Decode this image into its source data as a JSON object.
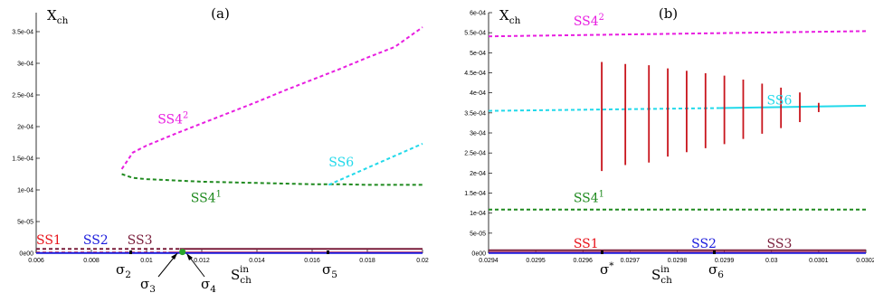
{
  "chart_data": [
    {
      "type": "line",
      "panel_label": "(a)",
      "ylabel": "X",
      "ylabel_sub": "ch",
      "xlabel": "S",
      "xlabel_sub": "ch",
      "xlabel_sup": "in",
      "xlim": [
        0.006,
        0.02
      ],
      "ylim": [
        0,
        0.00038
      ],
      "xticks": [
        {
          "v": 0.006,
          "label": "0.006"
        },
        {
          "v": 0.008,
          "label": "0.008"
        },
        {
          "v": 0.01,
          "label": "0.01"
        },
        {
          "v": 0.012,
          "label": "0.012"
        },
        {
          "v": 0.014,
          "label": "0.014"
        },
        {
          "v": 0.016,
          "label": "0.016"
        },
        {
          "v": 0.018,
          "label": "0.018"
        },
        {
          "v": 0.02,
          "label": "0.02"
        }
      ],
      "yticks": [
        {
          "v": 0,
          "label": "0e00"
        },
        {
          "v": 5e-05,
          "label": "5e-05"
        },
        {
          "v": 0.0001,
          "label": "1e-04"
        },
        {
          "v": 0.00015,
          "label": "1.5e-04"
        },
        {
          "v": 0.0002,
          "label": "2e-04"
        },
        {
          "v": 0.00025,
          "label": "2.5e-04"
        },
        {
          "v": 0.0003,
          "label": "3e-04"
        },
        {
          "v": 0.00035,
          "label": "3.5e-04"
        }
      ],
      "series": [
        {
          "name": "SS1",
          "color": "#e8141c",
          "style": "solid",
          "x": [
            0.0108,
            0.02
          ],
          "y": [
            1.2e-06,
            1.2e-06
          ]
        },
        {
          "name": "SS1",
          "color": "#e8141c",
          "style": "dashed",
          "x": [
            0.006,
            0.0108
          ],
          "y": [
            1.2e-06,
            1.2e-06
          ]
        },
        {
          "name": "SS2",
          "color": "#1a1adc",
          "style": "solid",
          "x": [
            0.006,
            0.02
          ],
          "y": [
            3e-07,
            3e-07
          ]
        },
        {
          "name": "SS3",
          "color": "#7a1f3c",
          "style": "solid",
          "x": [
            0.0112,
            0.02
          ],
          "y": [
            6.8e-06,
            6.8e-06
          ]
        },
        {
          "name": "SS3",
          "color": "#7a1f3c",
          "style": "dashed",
          "x": [
            0.006,
            0.0112
          ],
          "y": [
            6.8e-06,
            6.8e-06
          ]
        },
        {
          "name": "SS4²",
          "color": "#e81ee0",
          "style": "dashed",
          "x": [
            0.0091,
            0.0095,
            0.01,
            0.011,
            0.012,
            0.013,
            0.014,
            0.015,
            0.016,
            0.017,
            0.018,
            0.019,
            0.02
          ],
          "y": [
            0.000133,
            0.000159,
            0.00017,
            0.000188,
            0.000205,
            0.000222,
            0.000239,
            0.000257,
            0.000274,
            0.000291,
            0.000309,
            0.000326,
            0.000357
          ]
        },
        {
          "name": "SS4¹",
          "color": "#1f8a1f",
          "style": "dashed",
          "x": [
            0.0091,
            0.0095,
            0.01,
            0.011,
            0.012,
            0.013,
            0.014,
            0.015,
            0.016,
            0.017,
            0.018,
            0.019,
            0.02
          ],
          "y": [
            0.000125,
            0.000119,
            0.000117,
            0.000115,
            0.000113,
            0.000112,
            0.000111,
            0.00011,
            0.000109,
            0.000109,
            0.000108,
            0.000108,
            0.000108
          ]
        },
        {
          "name": "SS6",
          "color": "#22d9ea",
          "style": "dashed",
          "x": [
            0.0166,
            0.02
          ],
          "y": [
            0.000108,
            0.000173
          ]
        }
      ],
      "markers": [
        {
          "x": 0.0113,
          "y": 2e-06,
          "color": "#2aa52a"
        }
      ],
      "annotations": [
        {
          "text": "SS4",
          "sup": "2",
          "x": 0.0104,
          "y": 0.000205,
          "color": "#e81ee0"
        },
        {
          "text": "SS4",
          "sup": "1",
          "x": 0.0116,
          "y": 8.1e-05,
          "color": "#1f8a1f"
        },
        {
          "text": "SS6",
          "x": 0.0166,
          "y": 0.000137,
          "color": "#22d9ea"
        },
        {
          "text": "SS1",
          "x": 0.006,
          "y": 1.4e-05,
          "color": "#e8141c"
        },
        {
          "text": "SS2",
          "x": 0.0077,
          "y": 1.4e-05,
          "color": "#1a1adc"
        },
        {
          "text": "SS3",
          "x": 0.0093,
          "y": 1.4e-05,
          "color": "#7a1f3c"
        }
      ],
      "sigmas": [
        {
          "sym": "σ",
          "sub": "2"
        },
        {
          "sym": "σ",
          "sub": "3"
        },
        {
          "sym": "σ",
          "sub": "4"
        },
        {
          "sym": "σ",
          "sub": "5"
        }
      ]
    },
    {
      "type": "line",
      "panel_label": "(b)",
      "ylabel": "X",
      "ylabel_sub": "ch",
      "xlabel": "S",
      "xlabel_sub": "ch",
      "xlabel_sup": "in",
      "xlim": [
        0.0294,
        0.0302
      ],
      "ylim": [
        0,
        0.0006
      ],
      "xticks": [
        {
          "v": 0.0294,
          "label": "0.0294"
        },
        {
          "v": 0.0295,
          "label": "0.0295"
        },
        {
          "v": 0.0296,
          "label": "0.0296"
        },
        {
          "v": 0.0297,
          "label": "0.0297"
        },
        {
          "v": 0.0298,
          "label": "0.0298"
        },
        {
          "v": 0.0299,
          "label": "0.0299"
        },
        {
          "v": 0.03,
          "label": "0.03"
        },
        {
          "v": 0.0301,
          "label": "0.0301"
        },
        {
          "v": 0.0302,
          "label": "0.0302"
        }
      ],
      "yticks": [
        {
          "v": 0,
          "label": "0e00"
        },
        {
          "v": 5e-05,
          "label": "5e-05"
        },
        {
          "v": 0.0001,
          "label": "1e-04"
        },
        {
          "v": 0.00015,
          "label": "1.5e-04"
        },
        {
          "v": 0.0002,
          "label": "2e-04"
        },
        {
          "v": 0.00025,
          "label": "2.5e-04"
        },
        {
          "v": 0.0003,
          "label": "3e-04"
        },
        {
          "v": 0.00035,
          "label": "3.5e-04"
        },
        {
          "v": 0.0004,
          "label": "4e-04"
        },
        {
          "v": 0.00045,
          "label": "4.5e-04"
        },
        {
          "v": 0.0005,
          "label": "5e-04"
        },
        {
          "v": 0.00055,
          "label": "5.5e-04"
        },
        {
          "v": 0.0006,
          "label": "6e-04"
        }
      ],
      "series": [
        {
          "name": "SS1",
          "color": "#e8141c",
          "style": "solid",
          "x": [
            0.0294,
            0.0302
          ],
          "y": [
            1.5e-06,
            1.5e-06
          ]
        },
        {
          "name": "SS2",
          "color": "#1a1adc",
          "style": "solid",
          "x": [
            0.0294,
            0.0302
          ],
          "y": [
            4e-07,
            4e-07
          ]
        },
        {
          "name": "SS3",
          "color": "#7a1f3c",
          "style": "solid",
          "x": [
            0.0294,
            0.0302
          ],
          "y": [
            7.5e-06,
            7.5e-06
          ]
        },
        {
          "name": "SS4²",
          "color": "#e81ee0",
          "style": "dashed",
          "x": [
            0.0294,
            0.0302
          ],
          "y": [
            0.000541,
            0.000554
          ]
        },
        {
          "name": "SS4¹",
          "color": "#1f8a1f",
          "style": "dashed",
          "x": [
            0.0294,
            0.0302
          ],
          "y": [
            0.000109,
            0.000109
          ]
        },
        {
          "name": "SS6",
          "color": "#22d9ea",
          "style": "dashed",
          "x": [
            0.0294,
            0.02989
          ],
          "y": [
            0.000355,
            0.000362
          ]
        },
        {
          "name": "SS6",
          "color": "#22d9ea",
          "style": "solid",
          "x": [
            0.02989,
            0.0302
          ],
          "y": [
            0.000362,
            0.000368
          ]
        }
      ],
      "oscillations": {
        "color": "#c8141c",
        "bars": [
          {
            "x": 0.02964,
            "ymin": 0.000205,
            "ymax": 0.000477
          },
          {
            "x": 0.02969,
            "ymin": 0.00022,
            "ymax": 0.000472
          },
          {
            "x": 0.02974,
            "ymin": 0.000226,
            "ymax": 0.000469
          },
          {
            "x": 0.02978,
            "ymin": 0.000241,
            "ymax": 0.000461
          },
          {
            "x": 0.02982,
            "ymin": 0.000252,
            "ymax": 0.000455
          },
          {
            "x": 0.02986,
            "ymin": 0.000262,
            "ymax": 0.000449
          },
          {
            "x": 0.0299,
            "ymin": 0.000272,
            "ymax": 0.000443
          },
          {
            "x": 0.02994,
            "ymin": 0.000285,
            "ymax": 0.000433
          },
          {
            "x": 0.02998,
            "ymin": 0.000298,
            "ymax": 0.000423
          },
          {
            "x": 0.03002,
            "ymin": 0.000312,
            "ymax": 0.000413
          },
          {
            "x": 0.03006,
            "ymin": 0.000327,
            "ymax": 0.000401
          },
          {
            "x": 0.0301,
            "ymin": 0.000352,
            "ymax": 0.000375
          }
        ]
      },
      "annotations": [
        {
          "text": "SS4",
          "sup": "2",
          "x": 0.02958,
          "y": 0.000568,
          "color": "#e81ee0"
        },
        {
          "text": "SS6",
          "x": 0.02999,
          "y": 0.000371,
          "color": "#22d9ea"
        },
        {
          "text": "SS4",
          "sup": "1",
          "x": 0.02958,
          "y": 0.000128,
          "color": "#1f8a1f"
        },
        {
          "text": "SS1",
          "x": 0.02958,
          "y": 1.4e-05,
          "color": "#e8141c"
        },
        {
          "text": "SS2",
          "x": 0.02983,
          "y": 1.4e-05,
          "color": "#1a1adc"
        },
        {
          "text": "SS3",
          "x": 0.02999,
          "y": 1.4e-05,
          "color": "#7a1f3c"
        }
      ],
      "sigmas": [
        {
          "sym": "σ",
          "sup": "*"
        },
        {
          "sym": "σ",
          "sub": "6"
        }
      ]
    }
  ]
}
